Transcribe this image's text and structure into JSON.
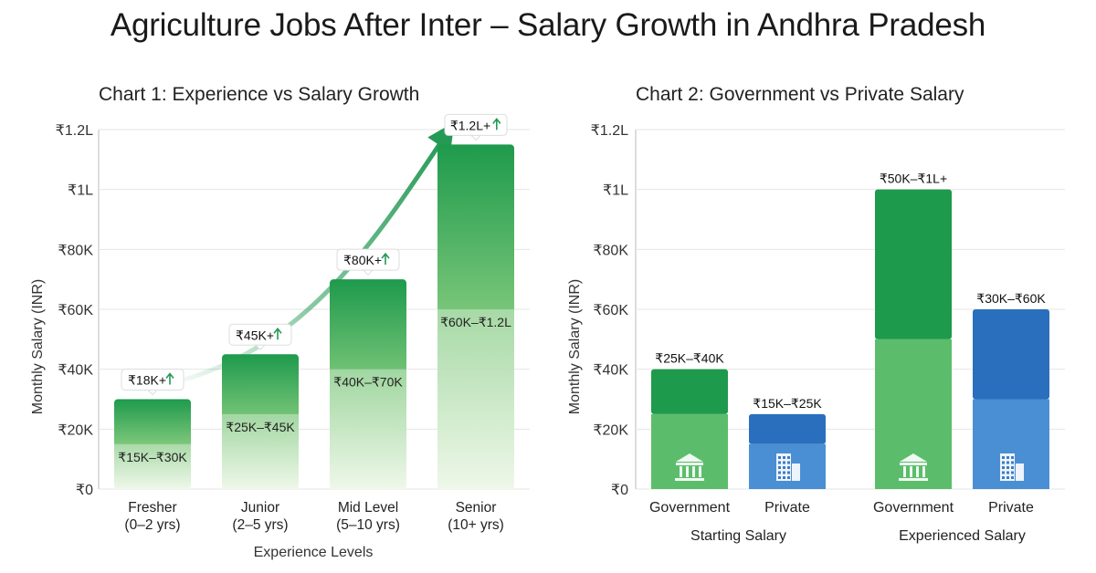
{
  "page": {
    "title": "Agriculture Jobs After Inter – Salary Growth in Andhra Pradesh"
  },
  "colors": {
    "green_dark": "#1e9a4c",
    "green_mid": "#5bbd6b",
    "green_light": "#dff1d8",
    "blue_dark": "#2a6fbd",
    "blue_mid": "#4a8fd3",
    "grid": "#e4e4e4",
    "arrow": "#249a55"
  },
  "chart_data": [
    {
      "type": "bar",
      "title": "Chart 1: Experience vs Salary Growth",
      "ylabel": "Monthly Salary (INR)",
      "xlabel": "Experience Levels",
      "ylim": [
        0,
        120000
      ],
      "yticks": [
        0,
        20000,
        40000,
        60000,
        80000,
        100000,
        120000
      ],
      "ytick_labels": [
        "₹0",
        "₹20K",
        "₹40K",
        "₹60K",
        "₹80K",
        "₹1L",
        "₹1.2L"
      ],
      "grid": true,
      "categories": [
        {
          "name": "Fresher",
          "sub": "(0–2 yrs)"
        },
        {
          "name": "Junior",
          "sub": "(2–5 yrs)"
        },
        {
          "name": "Mid Level",
          "sub": "(5–10 yrs)"
        },
        {
          "name": "Senior",
          "sub": "(10+ yrs)"
        }
      ],
      "range_low": [
        15000,
        25000,
        40000,
        60000
      ],
      "range_high": [
        30000,
        45000,
        70000,
        115000
      ],
      "range_labels": [
        "₹15K–₹30K",
        "₹25K–₹45K",
        "₹40K–₹70K",
        "₹60K–₹1.2L"
      ],
      "top_labels": [
        "₹18K+",
        "₹45K+",
        "₹80K+",
        "₹1.2L+"
      ],
      "trend_arrow": true
    },
    {
      "type": "bar",
      "title": "Chart 2: Government vs Private Salary",
      "ylabel": "Monthly Salary (INR)",
      "ylim": [
        0,
        120000
      ],
      "yticks": [
        0,
        20000,
        40000,
        60000,
        80000,
        100000,
        120000
      ],
      "ytick_labels": [
        "₹0",
        "₹20K",
        "₹40K",
        "₹60K",
        "₹80K",
        "₹1L",
        "₹1.2L"
      ],
      "grid": true,
      "groups": [
        {
          "name": "Starting Salary",
          "bars": [
            {
              "sector": "Government",
              "low": 25000,
              "high": 40000,
              "label": "₹25K–₹40K",
              "icon": "government-building-icon"
            },
            {
              "sector": "Private",
              "low": 15000,
              "high": 25000,
              "label": "₹15K–₹25K",
              "icon": "office-building-icon"
            }
          ]
        },
        {
          "name": "Experienced Salary",
          "bars": [
            {
              "sector": "Government",
              "low": 50000,
              "high": 100000,
              "label": "₹50K–₹1L+",
              "icon": "government-building-icon"
            },
            {
              "sector": "Private",
              "low": 30000,
              "high": 60000,
              "label": "₹30K–₹60K",
              "icon": "office-building-icon"
            }
          ]
        }
      ]
    }
  ]
}
